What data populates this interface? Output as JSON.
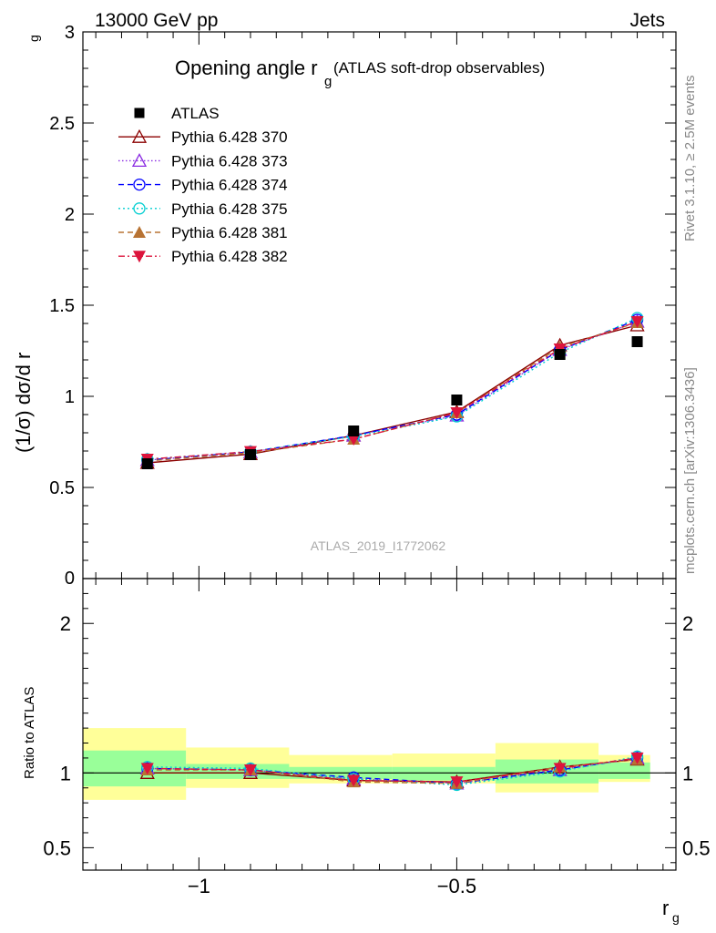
{
  "header": {
    "left": "13000 GeV pp",
    "right": "Jets"
  },
  "side_labels": {
    "rivet": "Rivet 3.1.10, ≥ 2.5M events",
    "mcplots": "mcplots.cern.ch [arXiv:1306.3436]"
  },
  "watermark": "ATLAS_2019_I1772062",
  "colors": {
    "ATLAS": "#000000",
    "p370": "#8b0000",
    "p373": "#8a2be2",
    "p374": "#0000ff",
    "p375": "#00ced1",
    "p381": "#b87333",
    "p382": "#dc143c",
    "band_inner": "#99ff99",
    "band_outer": "#ffff99"
  },
  "chart_data": [
    {
      "type": "line",
      "panel": "main",
      "title_main": "Opening angle r",
      "title_sub": "g",
      "title_rest": " (ATLAS soft-drop observables)",
      "ylabel_main": "(1/σ) dσ/d r",
      "ylabel_sub": "g",
      "xlim": [
        -1.225,
        -0.075
      ],
      "ylim": [
        0,
        3
      ],
      "yticks": [
        "0.5",
        "1",
        "1.5",
        "2",
        "2.5",
        "3"
      ],
      "ytick_values": [
        0.5,
        1,
        1.5,
        2,
        2.5,
        3
      ],
      "bottom_label": "0",
      "x": [
        -1.1,
        -0.9,
        -0.7,
        -0.5,
        -0.3,
        -0.15
      ],
      "legend_placement": "top-left",
      "series": [
        {
          "key": "ATLAS",
          "name": "ATLAS",
          "marker": "square",
          "dash": "",
          "values": [
            0.63,
            0.68,
            0.81,
            0.98,
            1.23,
            1.3
          ]
        },
        {
          "key": "p370",
          "name": "Pythia 6.428 370",
          "marker": "triangle-open",
          "dash": "",
          "values": [
            0.635,
            0.683,
            0.785,
            0.915,
            1.28,
            1.39
          ]
        },
        {
          "key": "p373",
          "name": "Pythia 6.428 373",
          "marker": "triangle-open",
          "dash": "1.5,2.5",
          "values": [
            0.65,
            0.693,
            0.785,
            0.895,
            1.255,
            1.41
          ]
        },
        {
          "key": "p374",
          "name": "Pythia 6.428 374",
          "marker": "circle-open",
          "dash": "6,4",
          "values": [
            0.65,
            0.695,
            0.785,
            0.9,
            1.255,
            1.42
          ]
        },
        {
          "key": "p375",
          "name": "Pythia 6.428 375",
          "marker": "circle-open",
          "dash": "2,3",
          "values": [
            0.655,
            0.697,
            0.78,
            0.89,
            1.24,
            1.43
          ]
        },
        {
          "key": "p381",
          "name": "Pythia 6.428 381",
          "marker": "triangle-filled",
          "dash": "6,4",
          "values": [
            0.645,
            0.69,
            0.765,
            0.91,
            1.27,
            1.405
          ]
        },
        {
          "key": "p382",
          "name": "Pythia 6.428 382",
          "marker": "triangle-down-filled",
          "dash": "7,3,2,3",
          "values": [
            0.655,
            0.697,
            0.765,
            0.91,
            1.26,
            1.41
          ]
        }
      ]
    },
    {
      "type": "line",
      "panel": "ratio",
      "ylabel": "Ratio to ATLAS",
      "xlabel_main": "r",
      "xlabel_sub": "g",
      "xlim": [
        -1.225,
        -0.075
      ],
      "ylim": [
        0.35,
        2.3
      ],
      "yticks": [
        "0.5",
        "1",
        "2"
      ],
      "ytick_values": [
        0.5,
        1,
        2
      ],
      "xticks": [
        "−1",
        "−0.5"
      ],
      "xtick_values": [
        -1,
        -0.5
      ],
      "bins": [
        {
          "lo": -1.225,
          "hi": -1.025,
          "inner": [
            0.91,
            1.15
          ],
          "outer": [
            0.82,
            1.3
          ]
        },
        {
          "lo": -1.025,
          "hi": -0.825,
          "inner": [
            0.96,
            1.06
          ],
          "outer": [
            0.9,
            1.17
          ]
        },
        {
          "lo": -0.825,
          "hi": -0.625,
          "inner": [
            0.96,
            1.04
          ],
          "outer": [
            0.93,
            1.12
          ]
        },
        {
          "lo": -0.625,
          "hi": -0.425,
          "inner": [
            0.95,
            1.04
          ],
          "outer": [
            0.93,
            1.13
          ]
        },
        {
          "lo": -0.425,
          "hi": -0.225,
          "inner": [
            0.93,
            1.09
          ],
          "outer": [
            0.87,
            1.2
          ]
        },
        {
          "lo": -0.225,
          "hi": -0.125,
          "inner": [
            0.96,
            1.07
          ],
          "outer": [
            0.94,
            1.12
          ]
        }
      ],
      "x": [
        -1.1,
        -0.9,
        -0.7,
        -0.5,
        -0.3,
        -0.15
      ],
      "series": [
        {
          "key": "p370",
          "values": [
            1.0,
            1.0,
            0.95,
            0.94,
            1.04,
            1.09
          ]
        },
        {
          "key": "p373",
          "values": [
            1.03,
            1.02,
            0.96,
            0.93,
            1.02,
            1.1
          ]
        },
        {
          "key": "p374",
          "values": [
            1.03,
            1.02,
            0.97,
            0.93,
            1.02,
            1.1
          ]
        },
        {
          "key": "p375",
          "values": [
            1.04,
            1.03,
            0.96,
            0.92,
            1.01,
            1.11
          ]
        },
        {
          "key": "p381",
          "values": [
            1.02,
            1.02,
            0.94,
            0.93,
            1.04,
            1.09
          ]
        },
        {
          "key": "p382",
          "values": [
            1.03,
            1.02,
            0.95,
            0.94,
            1.03,
            1.1
          ]
        }
      ]
    }
  ]
}
